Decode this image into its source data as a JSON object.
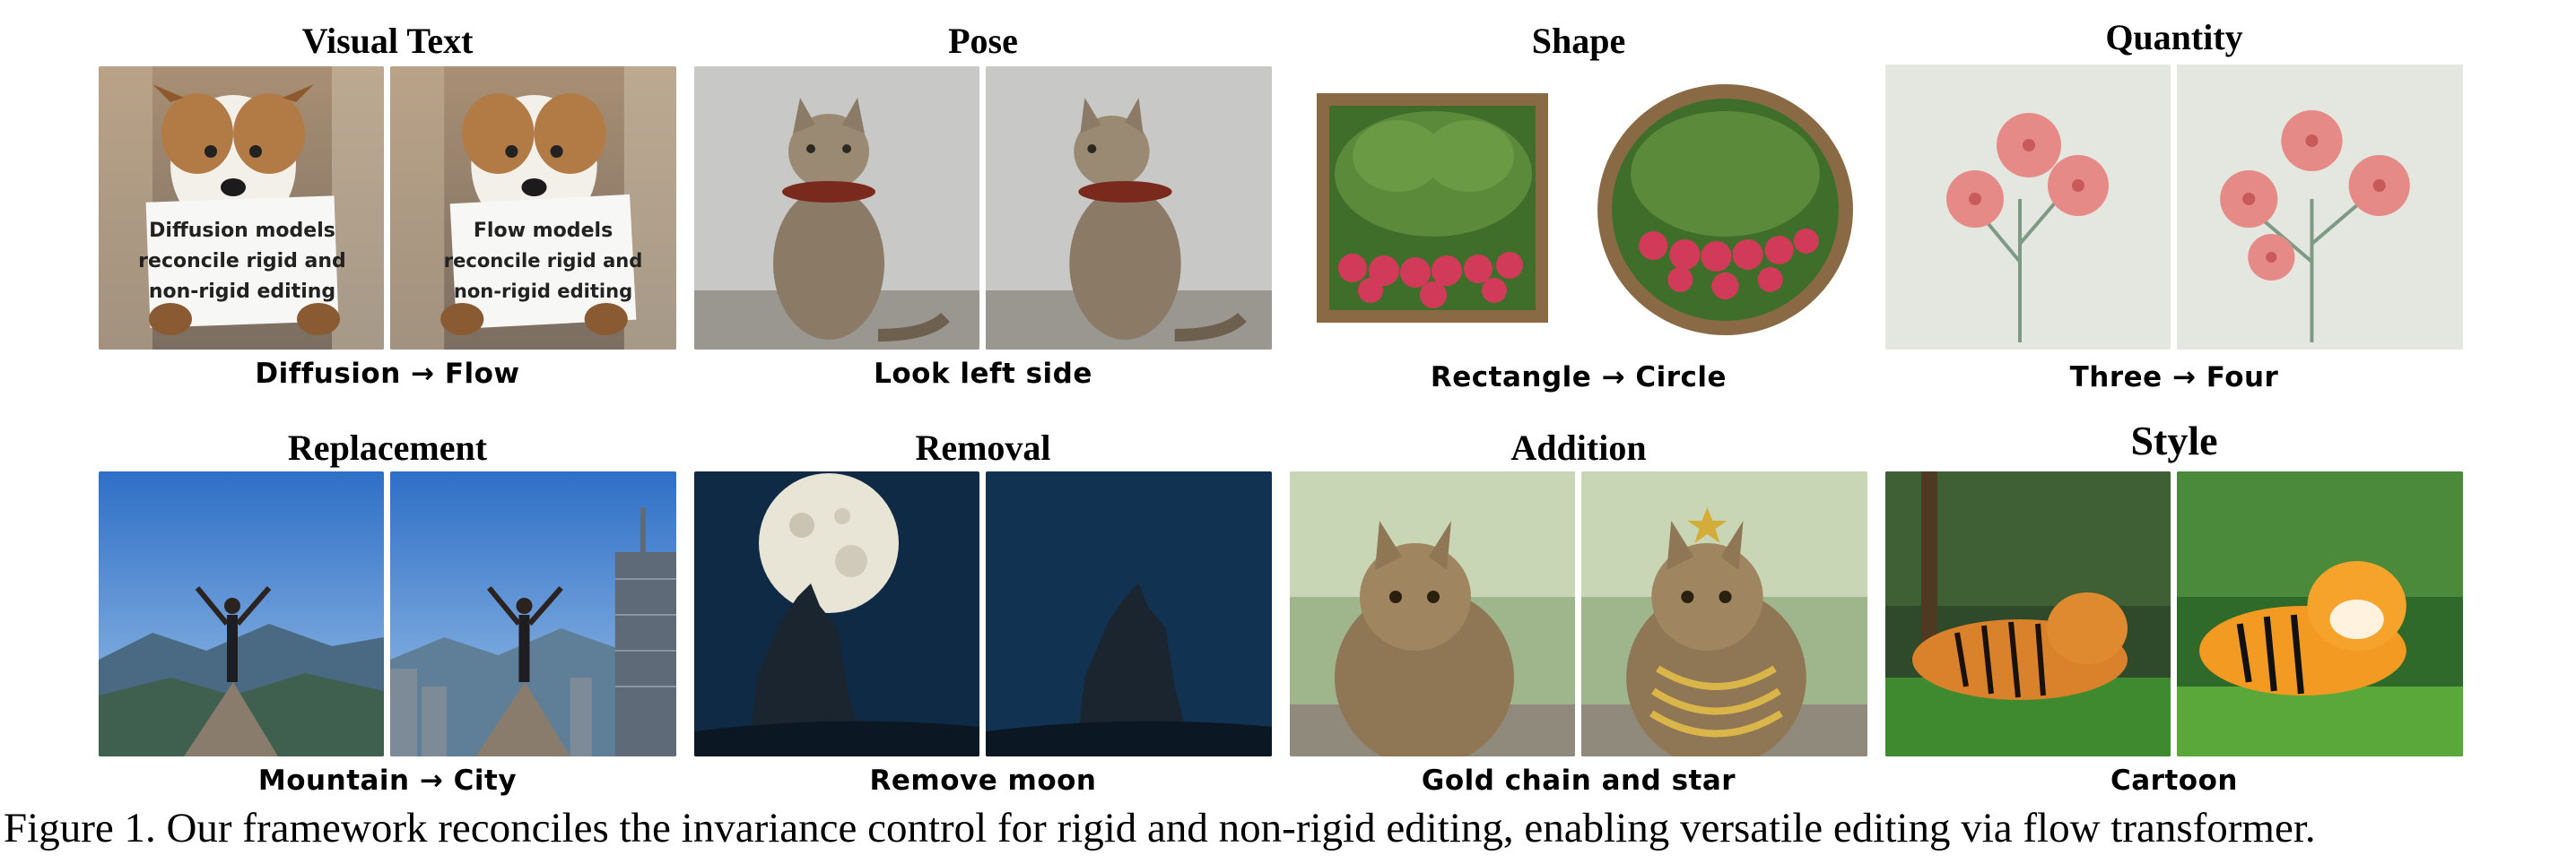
{
  "figure_caption": "Figure 1. Our framework reconciles the invariance control for rigid and non-rigid editing, enabling versatile editing via flow transformer.",
  "panels": {
    "visual_text": {
      "title": "Visual Text",
      "caption": "Diffusion → Flow",
      "sign_before": [
        "Diffusion models",
        "reconcile rigid and",
        "non-rigid editing"
      ],
      "sign_after": [
        "Flow models",
        "reconcile rigid and",
        "non-rigid editing"
      ]
    },
    "pose": {
      "title": "Pose",
      "caption": "Look left side"
    },
    "shape": {
      "title": "Shape",
      "caption": "Rectangle → Circle"
    },
    "quantity": {
      "title": "Quantity",
      "caption": "Three → Four"
    },
    "replacement": {
      "title": "Replacement",
      "caption": "Mountain → City"
    },
    "removal": {
      "title": "Removal",
      "caption": "Remove moon"
    },
    "addition": {
      "title": "Addition",
      "caption": "Gold chain and star"
    },
    "style": {
      "title": "Style",
      "caption": "Cartoon"
    }
  }
}
